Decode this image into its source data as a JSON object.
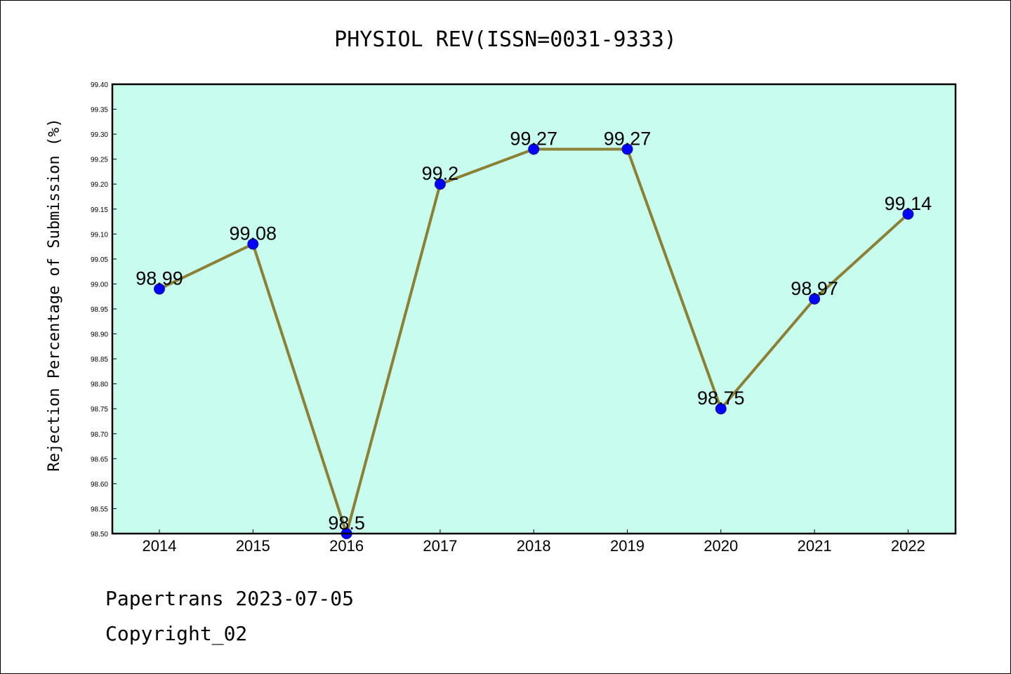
{
  "chart_data": {
    "type": "line",
    "title": "PHYSIOL REV(ISSN=0031-9333)",
    "ylabel": "Rejection Percentage of Submission (%)",
    "xlabel": "",
    "categories": [
      "2014",
      "2015",
      "2016",
      "2017",
      "2018",
      "2019",
      "2020",
      "2021",
      "2022"
    ],
    "values": [
      98.99,
      99.08,
      98.5,
      99.2,
      99.27,
      99.27,
      98.75,
      98.97,
      99.14
    ],
    "data_labels": [
      "98.99",
      "99.08",
      "98.5",
      "99.2",
      "99.27",
      "99.27",
      "98.75",
      "98.97",
      "99.14"
    ],
    "ylim": [
      98.5,
      99.4
    ],
    "yticks": [
      "98.50",
      "98.55",
      "98.60",
      "98.65",
      "98.70",
      "98.75",
      "98.80",
      "98.85",
      "98.90",
      "98.95",
      "99.00",
      "99.05",
      "99.10",
      "99.15",
      "99.20",
      "99.25",
      "99.30",
      "99.35",
      "99.40"
    ],
    "grid": false,
    "colors": {
      "plot_background": "#c8fcee",
      "line": "#8b8033",
      "marker": "#0000ff"
    }
  },
  "footer": {
    "line1": "Papertrans 2023-07-05",
    "line2": "Copyright_02"
  }
}
